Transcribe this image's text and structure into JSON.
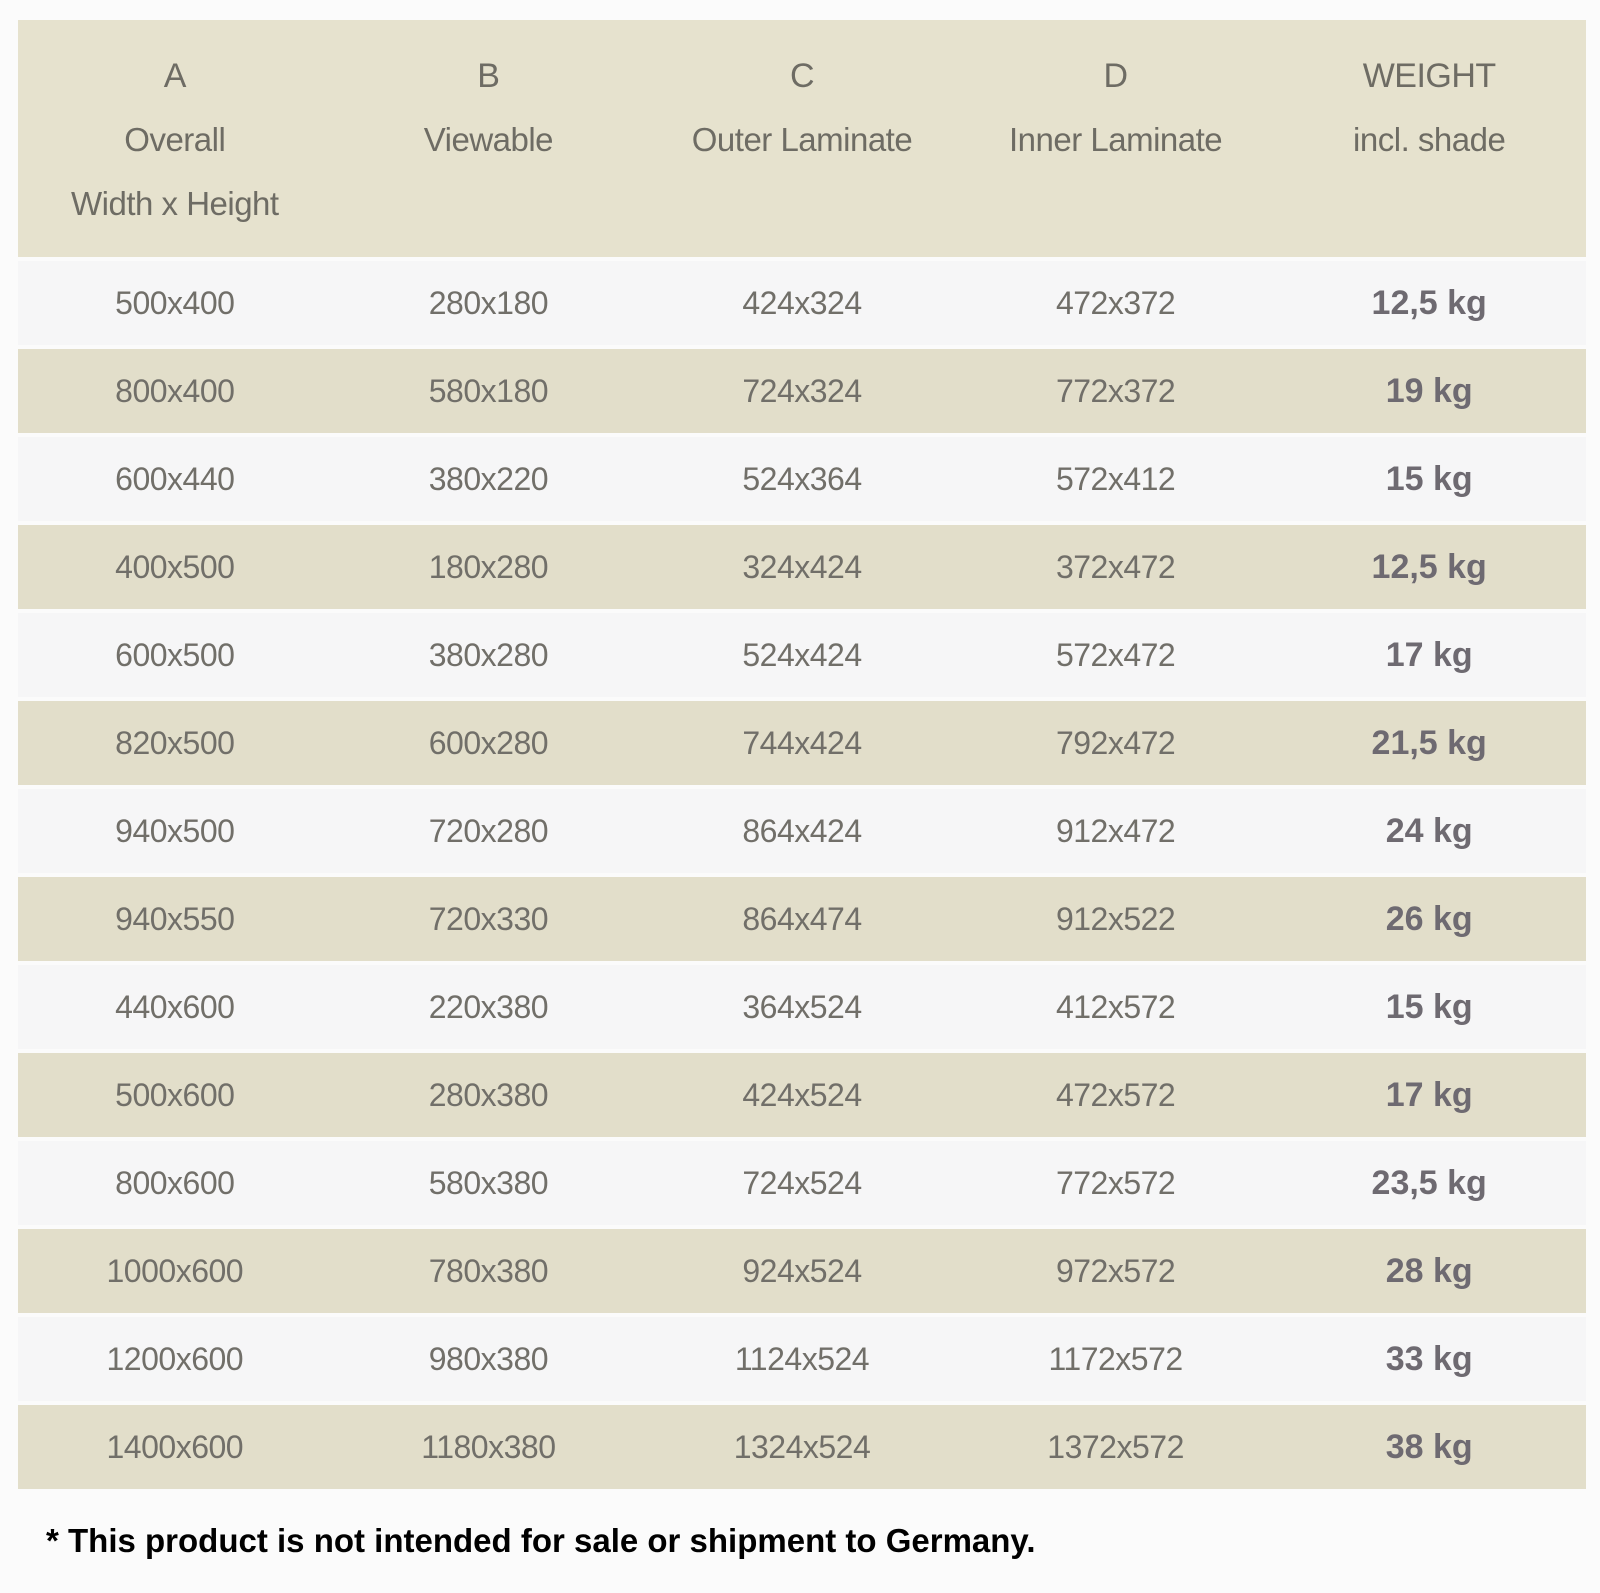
{
  "chart_data": {
    "type": "table",
    "columns": [
      {
        "letter": "A",
        "label": "Overall",
        "sublabel": "Width x Height"
      },
      {
        "letter": "B",
        "label": "Viewable",
        "sublabel": ""
      },
      {
        "letter": "C",
        "label": "Outer Laminate",
        "sublabel": ""
      },
      {
        "letter": "D",
        "label": "Inner Laminate",
        "sublabel": ""
      },
      {
        "letter": "WEIGHT",
        "label": "incl. shade",
        "sublabel": ""
      }
    ],
    "rows": [
      [
        "500x400",
        "280x180",
        "424x324",
        "472x372",
        "12,5 kg"
      ],
      [
        "800x400",
        "580x180",
        "724x324",
        "772x372",
        "19 kg"
      ],
      [
        "600x440",
        "380x220",
        "524x364",
        "572x412",
        "15 kg"
      ],
      [
        "400x500",
        "180x280",
        "324x424",
        "372x472",
        "12,5 kg"
      ],
      [
        "600x500",
        "380x280",
        "524x424",
        "572x472",
        "17 kg"
      ],
      [
        "820x500",
        "600x280",
        "744x424",
        "792x472",
        "21,5 kg"
      ],
      [
        "940x500",
        "720x280",
        "864x424",
        "912x472",
        "24 kg"
      ],
      [
        "940x550",
        "720x330",
        "864x474",
        "912x522",
        "26 kg"
      ],
      [
        "440x600",
        "220x380",
        "364x524",
        "412x572",
        "15 kg"
      ],
      [
        "500x600",
        "280x380",
        "424x524",
        "472x572",
        "17 kg"
      ],
      [
        "800x600",
        "580x380",
        "724x524",
        "772x572",
        "23,5 kg"
      ],
      [
        "1000x600",
        "780x380",
        "924x524",
        "972x572",
        "28 kg"
      ],
      [
        "1200x600",
        "980x380",
        "1124x524",
        "1172x572",
        "33 kg"
      ],
      [
        "1400x600",
        "1180x380",
        "1324x524",
        "1372x572",
        "38 kg"
      ]
    ]
  },
  "footnote": "* This product is not intended for sale or shipment to Germany.",
  "colors": {
    "page_bg": "#fbfbfb",
    "header_bg": "#e6e2ce",
    "row_beige": "#e2deca",
    "row_light": "#f6f6f7",
    "dimension_text": "#716f69",
    "header_text": "#6e6c64",
    "weight_text": "#6e6a71",
    "footnote_text": "#000000"
  }
}
